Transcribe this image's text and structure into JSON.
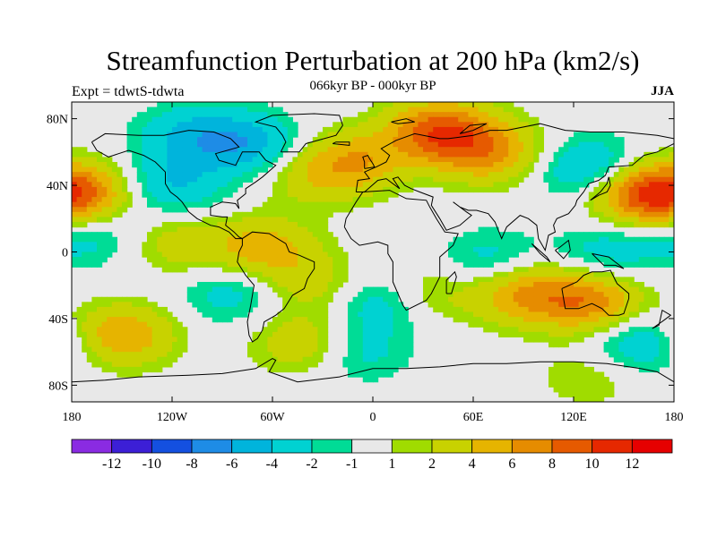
{
  "title": "Streamfunction Perturbation at 200 hPa (km2/s)",
  "experiment_label": "Expt = tdwtS-tdwta",
  "period_label": "066kyr BP - 000kyr BP",
  "season_label": "JJA",
  "chart_data": {
    "type": "heatmap",
    "variable": "Streamfunction perturbation",
    "level": "200 hPa",
    "units": "km2/s",
    "x_ticks": [
      {
        "value": -180,
        "label": "180"
      },
      {
        "value": -120,
        "label": "120W"
      },
      {
        "value": -60,
        "label": "60W"
      },
      {
        "value": 0,
        "label": "0"
      },
      {
        "value": 60,
        "label": "60E"
      },
      {
        "value": 120,
        "label": "120E"
      },
      {
        "value": 180,
        "label": "180"
      }
    ],
    "y_ticks": [
      {
        "value": 80,
        "label": "80N"
      },
      {
        "value": 40,
        "label": "40N"
      },
      {
        "value": 0,
        "label": "0"
      },
      {
        "value": -40,
        "label": "40S"
      },
      {
        "value": -80,
        "label": "80S"
      }
    ],
    "xlim": [
      -180,
      180
    ],
    "ylim": [
      -90,
      90
    ],
    "levels": [
      -14,
      -12,
      -10,
      -8,
      -6,
      -4,
      -2,
      -1,
      1,
      2,
      4,
      6,
      8,
      10,
      12,
      14
    ],
    "level_labels": [
      "-12",
      "-10",
      "-8",
      "-6",
      "-4",
      "-2",
      "-1",
      "1",
      "2",
      "4",
      "6",
      "8",
      "10",
      "12"
    ],
    "colors": [
      "#8a2be2",
      "#3c1fd6",
      "#1450e0",
      "#1e8ce6",
      "#00b4dc",
      "#00d2d2",
      "#00dc96",
      "#e8e8e8",
      "#a0dc00",
      "#c8d200",
      "#e6b400",
      "#e68c00",
      "#e65a00",
      "#e62800",
      "#e60000"
    ],
    "anomaly_centers": [
      {
        "lon": 40,
        "lat": 72,
        "value": 9
      },
      {
        "lon": 70,
        "lat": 60,
        "value": 6
      },
      {
        "lon": -10,
        "lat": 55,
        "value": 5
      },
      {
        "lon": -35,
        "lat": 45,
        "value": 3
      },
      {
        "lon": 160,
        "lat": 35,
        "value": 8
      },
      {
        "lon": -175,
        "lat": 35,
        "value": 7
      },
      {
        "lon": -110,
        "lat": 70,
        "value": -4
      },
      {
        "lon": -75,
        "lat": 65,
        "value": -5
      },
      {
        "lon": -120,
        "lat": 40,
        "value": -4
      },
      {
        "lon": 130,
        "lat": 50,
        "value": -5
      },
      {
        "lon": -170,
        "lat": 10,
        "value": -3
      },
      {
        "lon": -65,
        "lat": 2,
        "value": 5
      },
      {
        "lon": -115,
        "lat": 5,
        "value": 3
      },
      {
        "lon": 30,
        "lat": -25,
        "value": 3
      },
      {
        "lon": 90,
        "lat": -25,
        "value": 6
      },
      {
        "lon": 130,
        "lat": -30,
        "value": 7
      },
      {
        "lon": -35,
        "lat": -20,
        "value": 3
      },
      {
        "lon": 5,
        "lat": -30,
        "value": -4
      },
      {
        "lon": -85,
        "lat": -25,
        "value": -3
      },
      {
        "lon": 160,
        "lat": -55,
        "value": -4
      },
      {
        "lon": 140,
        "lat": 0,
        "value": -3
      },
      {
        "lon": 70,
        "lat": -5,
        "value": -3
      },
      {
        "lon": -150,
        "lat": -50,
        "value": 6
      },
      {
        "lon": -40,
        "lat": -55,
        "value": 4
      },
      {
        "lon": -10,
        "lat": -60,
        "value": -3
      },
      {
        "lon": 130,
        "lat": -75,
        "value": 2
      }
    ]
  }
}
